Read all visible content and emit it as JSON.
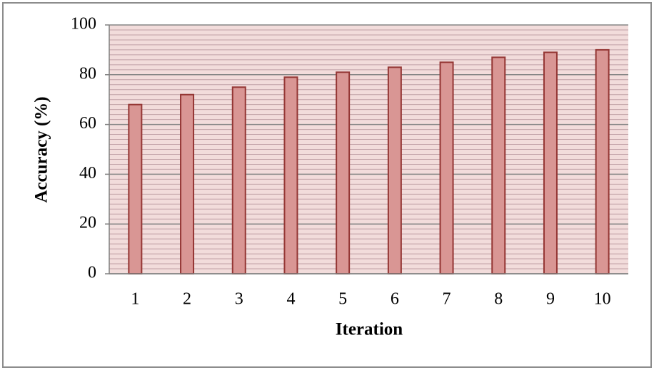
{
  "chart_data": {
    "type": "bar",
    "x_label": "Iteration",
    "y_label": "Accuracy (%)",
    "categories": [
      "1",
      "2",
      "3",
      "4",
      "5",
      "6",
      "7",
      "8",
      "9",
      "10"
    ],
    "values": [
      68,
      72,
      75,
      79,
      81,
      83,
      85,
      87,
      89,
      90
    ],
    "color": "#d99694",
    "edge_color": "#943634",
    "ylim": [
      0,
      100
    ],
    "yticks": [
      0,
      20,
      40,
      60,
      80,
      100
    ],
    "grid": true,
    "minor_grid": true
  }
}
